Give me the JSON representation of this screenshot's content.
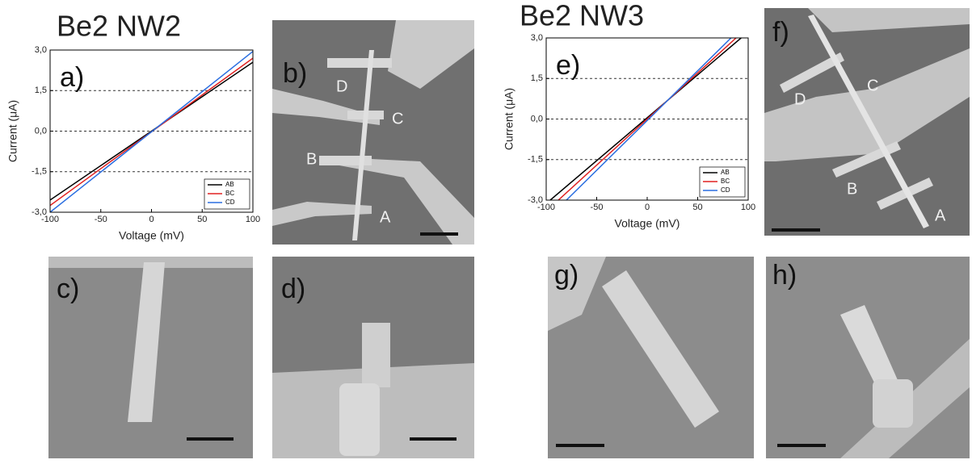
{
  "titles": [
    "Be2 NW2",
    "Be2 NW3"
  ],
  "chart_data": [
    {
      "type": "line",
      "panel_label": "a)",
      "x_label": "Voltage (mV)",
      "y_label": "Current (μA)",
      "xlim": [
        -100,
        100
      ],
      "ylim": [
        -3,
        3
      ],
      "xticks": [
        -100,
        -50,
        0,
        50,
        100
      ],
      "yticks": [
        {
          "value": 3,
          "label": "3,0"
        },
        {
          "value": 1.5,
          "label": "1,5"
        },
        {
          "value": 0,
          "label": "0,0"
        },
        {
          "value": -1.5,
          "label": "-1,5"
        },
        {
          "value": -3,
          "label": "-3,0"
        }
      ],
      "reference_lines": [
        1.5,
        0,
        -1.5
      ],
      "legend": "lower right",
      "series": [
        {
          "name": "AB",
          "color": "#000000",
          "x": [
            -100,
            100
          ],
          "values": [
            -2.55,
            2.55
          ]
        },
        {
          "name": "BC",
          "color": "#e02020",
          "x": [
            -100,
            100
          ],
          "values": [
            -2.75,
            2.7
          ]
        },
        {
          "name": "CD",
          "color": "#2a6ee0",
          "x": [
            -100,
            100
          ],
          "values": [
            -3,
            2.95
          ]
        }
      ]
    },
    {
      "type": "line",
      "panel_label": "e)",
      "x_label": "Voltage (mV)",
      "y_label": "Current (μA)",
      "xlim": [
        -100,
        100
      ],
      "ylim": [
        -3,
        3
      ],
      "xticks": [
        -100,
        -50,
        0,
        50,
        100
      ],
      "yticks": [
        {
          "value": 3,
          "label": "3,0"
        },
        {
          "value": 1.5,
          "label": "1,5"
        },
        {
          "value": 0,
          "label": "0,0"
        },
        {
          "value": -1.5,
          "label": "-1,5"
        },
        {
          "value": -3,
          "label": "-3,0"
        }
      ],
      "reference_lines": [
        1.5,
        0,
        -1.5
      ],
      "legend": "lower right",
      "series": [
        {
          "name": "AB",
          "color": "#000000",
          "x": [
            -96,
            93
          ],
          "values": [
            -3,
            3
          ]
        },
        {
          "name": "BC",
          "color": "#e02020",
          "x": [
            -88,
            88
          ],
          "values": [
            -3,
            3
          ]
        },
        {
          "name": "CD",
          "color": "#2a6ee0",
          "x": [
            -80,
            83
          ],
          "values": [
            -3,
            3
          ]
        }
      ]
    }
  ],
  "images": [
    {
      "label": "b)",
      "markers": [
        "D",
        "C",
        "B",
        "A"
      ]
    },
    {
      "label": "c)"
    },
    {
      "label": "d)"
    },
    {
      "label": "f)",
      "markers": [
        "D",
        "C",
        "B",
        "A"
      ]
    },
    {
      "label": "g)"
    },
    {
      "label": "h)"
    }
  ]
}
